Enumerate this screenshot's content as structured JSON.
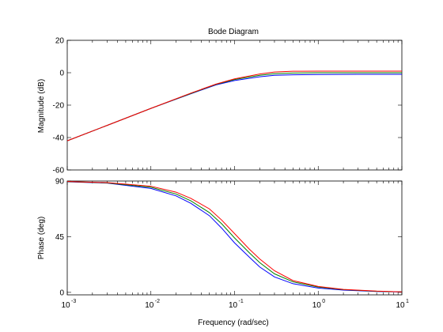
{
  "chart_data": {
    "type": "line",
    "title": "Bode Diagram",
    "xlabel": "Frequency  (rad/sec)",
    "xscale": "log",
    "xlim": [
      0.001,
      10
    ],
    "xticks": [
      {
        "base": "10",
        "exp": "-3"
      },
      {
        "base": "10",
        "exp": "-2"
      },
      {
        "base": "10",
        "exp": "-1"
      },
      {
        "base": "10",
        "exp": "0"
      },
      {
        "base": "10",
        "exp": "1"
      }
    ],
    "grid": false,
    "colors": {
      "blue": "#0000ff",
      "green": "#008000",
      "red": "#ff0000"
    },
    "magnitude": {
      "ylabel": "Magnitude (dB)",
      "ylim": [
        -60,
        20
      ],
      "yticks": [
        "20",
        "0",
        "-20",
        "-40",
        "-60"
      ],
      "series": [
        {
          "color": "blue",
          "x": [
            0.001,
            0.003,
            0.01,
            0.03,
            0.06,
            0.1,
            0.2,
            0.3,
            0.5,
            1,
            3,
            10
          ],
          "y": [
            -42.0,
            -32.5,
            -22.0,
            -13.0,
            -7.5,
            -4.8,
            -2.5,
            -1.6,
            -1.3,
            -1.1,
            -1.0,
            -1.0
          ]
        },
        {
          "color": "green",
          "x": [
            0.001,
            0.003,
            0.01,
            0.03,
            0.06,
            0.1,
            0.2,
            0.3,
            0.5,
            1,
            3,
            10
          ],
          "y": [
            -42.0,
            -32.5,
            -22.0,
            -12.8,
            -7.2,
            -4.2,
            -1.6,
            -0.6,
            -0.2,
            0.0,
            0.0,
            0.0
          ]
        },
        {
          "color": "red",
          "x": [
            0.001,
            0.003,
            0.01,
            0.03,
            0.06,
            0.1,
            0.2,
            0.3,
            0.5,
            1,
            3,
            10
          ],
          "y": [
            -42.0,
            -32.5,
            -22.0,
            -12.6,
            -7.0,
            -3.8,
            -0.8,
            0.4,
            0.9,
            1.0,
            1.0,
            1.0
          ]
        }
      ]
    },
    "phase": {
      "ylabel": "Phase (deg)",
      "ylim": [
        -2,
        90
      ],
      "yticks": [
        "90",
        "45",
        "0"
      ],
      "series": [
        {
          "color": "blue",
          "x": [
            0.001,
            0.003,
            0.01,
            0.02,
            0.03,
            0.05,
            0.07,
            0.1,
            0.15,
            0.2,
            0.3,
            0.5,
            1,
            2,
            5,
            10
          ],
          "y": [
            89.4,
            88.3,
            84.0,
            78.0,
            72.0,
            62.0,
            52.0,
            40.0,
            28.5,
            20.5,
            12.5,
            7.0,
            3.5,
            1.8,
            0.7,
            0.3
          ]
        },
        {
          "color": "green",
          "x": [
            0.001,
            0.003,
            0.01,
            0.02,
            0.03,
            0.05,
            0.07,
            0.1,
            0.15,
            0.2,
            0.3,
            0.5,
            1,
            2,
            5,
            10
          ],
          "y": [
            89.5,
            88.5,
            85.0,
            79.5,
            74.0,
            64.5,
            55.5,
            44.0,
            32.0,
            24.0,
            15.0,
            8.5,
            4.3,
            2.2,
            0.9,
            0.4
          ]
        },
        {
          "color": "red",
          "x": [
            0.001,
            0.003,
            0.01,
            0.02,
            0.03,
            0.05,
            0.07,
            0.1,
            0.15,
            0.2,
            0.3,
            0.5,
            1,
            2,
            5,
            10
          ],
          "y": [
            89.6,
            88.7,
            85.8,
            81.0,
            76.0,
            67.5,
            58.5,
            47.5,
            35.0,
            27.0,
            17.5,
            9.5,
            4.8,
            2.4,
            1.0,
            0.4
          ]
        }
      ]
    }
  }
}
